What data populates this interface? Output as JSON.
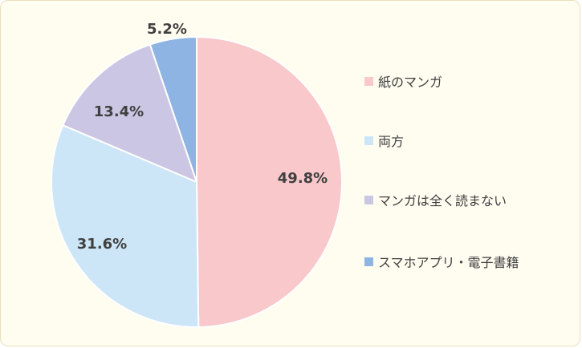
{
  "chart_data": {
    "type": "pie",
    "title": "",
    "start_angle_deg": 0,
    "direction": "clockwise",
    "slices": [
      {
        "label": "紙のマンガ",
        "value": 49.8,
        "display": "49.8%",
        "color": "#f8c8cb"
      },
      {
        "label": "両方",
        "value": 31.6,
        "display": "31.6%",
        "color": "#cce6f7"
      },
      {
        "label": "マンガは全く読まない",
        "value": 13.4,
        "display": "13.4%",
        "color": "#cbc6e3"
      },
      {
        "label": "スマホアプリ・電子書籍",
        "value": 5.2,
        "display": "5.2%",
        "color": "#8db4e2"
      }
    ],
    "legend_position": "right"
  }
}
